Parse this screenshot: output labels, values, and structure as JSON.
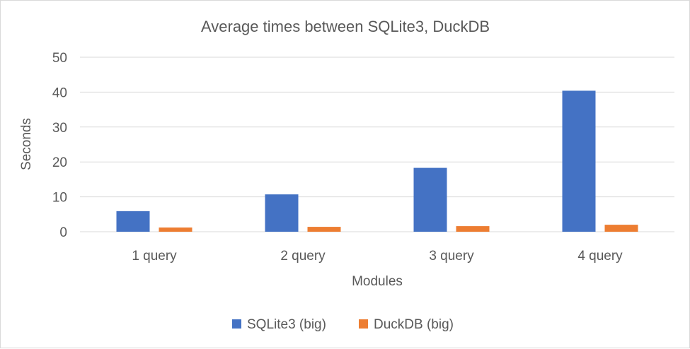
{
  "chart_data": {
    "type": "bar",
    "title": "Average times between SQLite3, DuckDB",
    "xlabel": "Modules",
    "ylabel": "Seconds",
    "categories": [
      "1 query",
      "2 query",
      "3 query",
      "4 query"
    ],
    "ylim": [
      0,
      50
    ],
    "yticks": [
      0,
      10,
      20,
      30,
      40,
      50
    ],
    "grid": true,
    "legend_position": "bottom",
    "series": [
      {
        "name": "SQLite3 (big)",
        "color": "#4472c4",
        "values": [
          5.9,
          10.7,
          18.3,
          40.4
        ]
      },
      {
        "name": "DuckDB (big)",
        "color": "#ed7d31",
        "values": [
          1.2,
          1.4,
          1.6,
          2.0
        ]
      }
    ]
  }
}
